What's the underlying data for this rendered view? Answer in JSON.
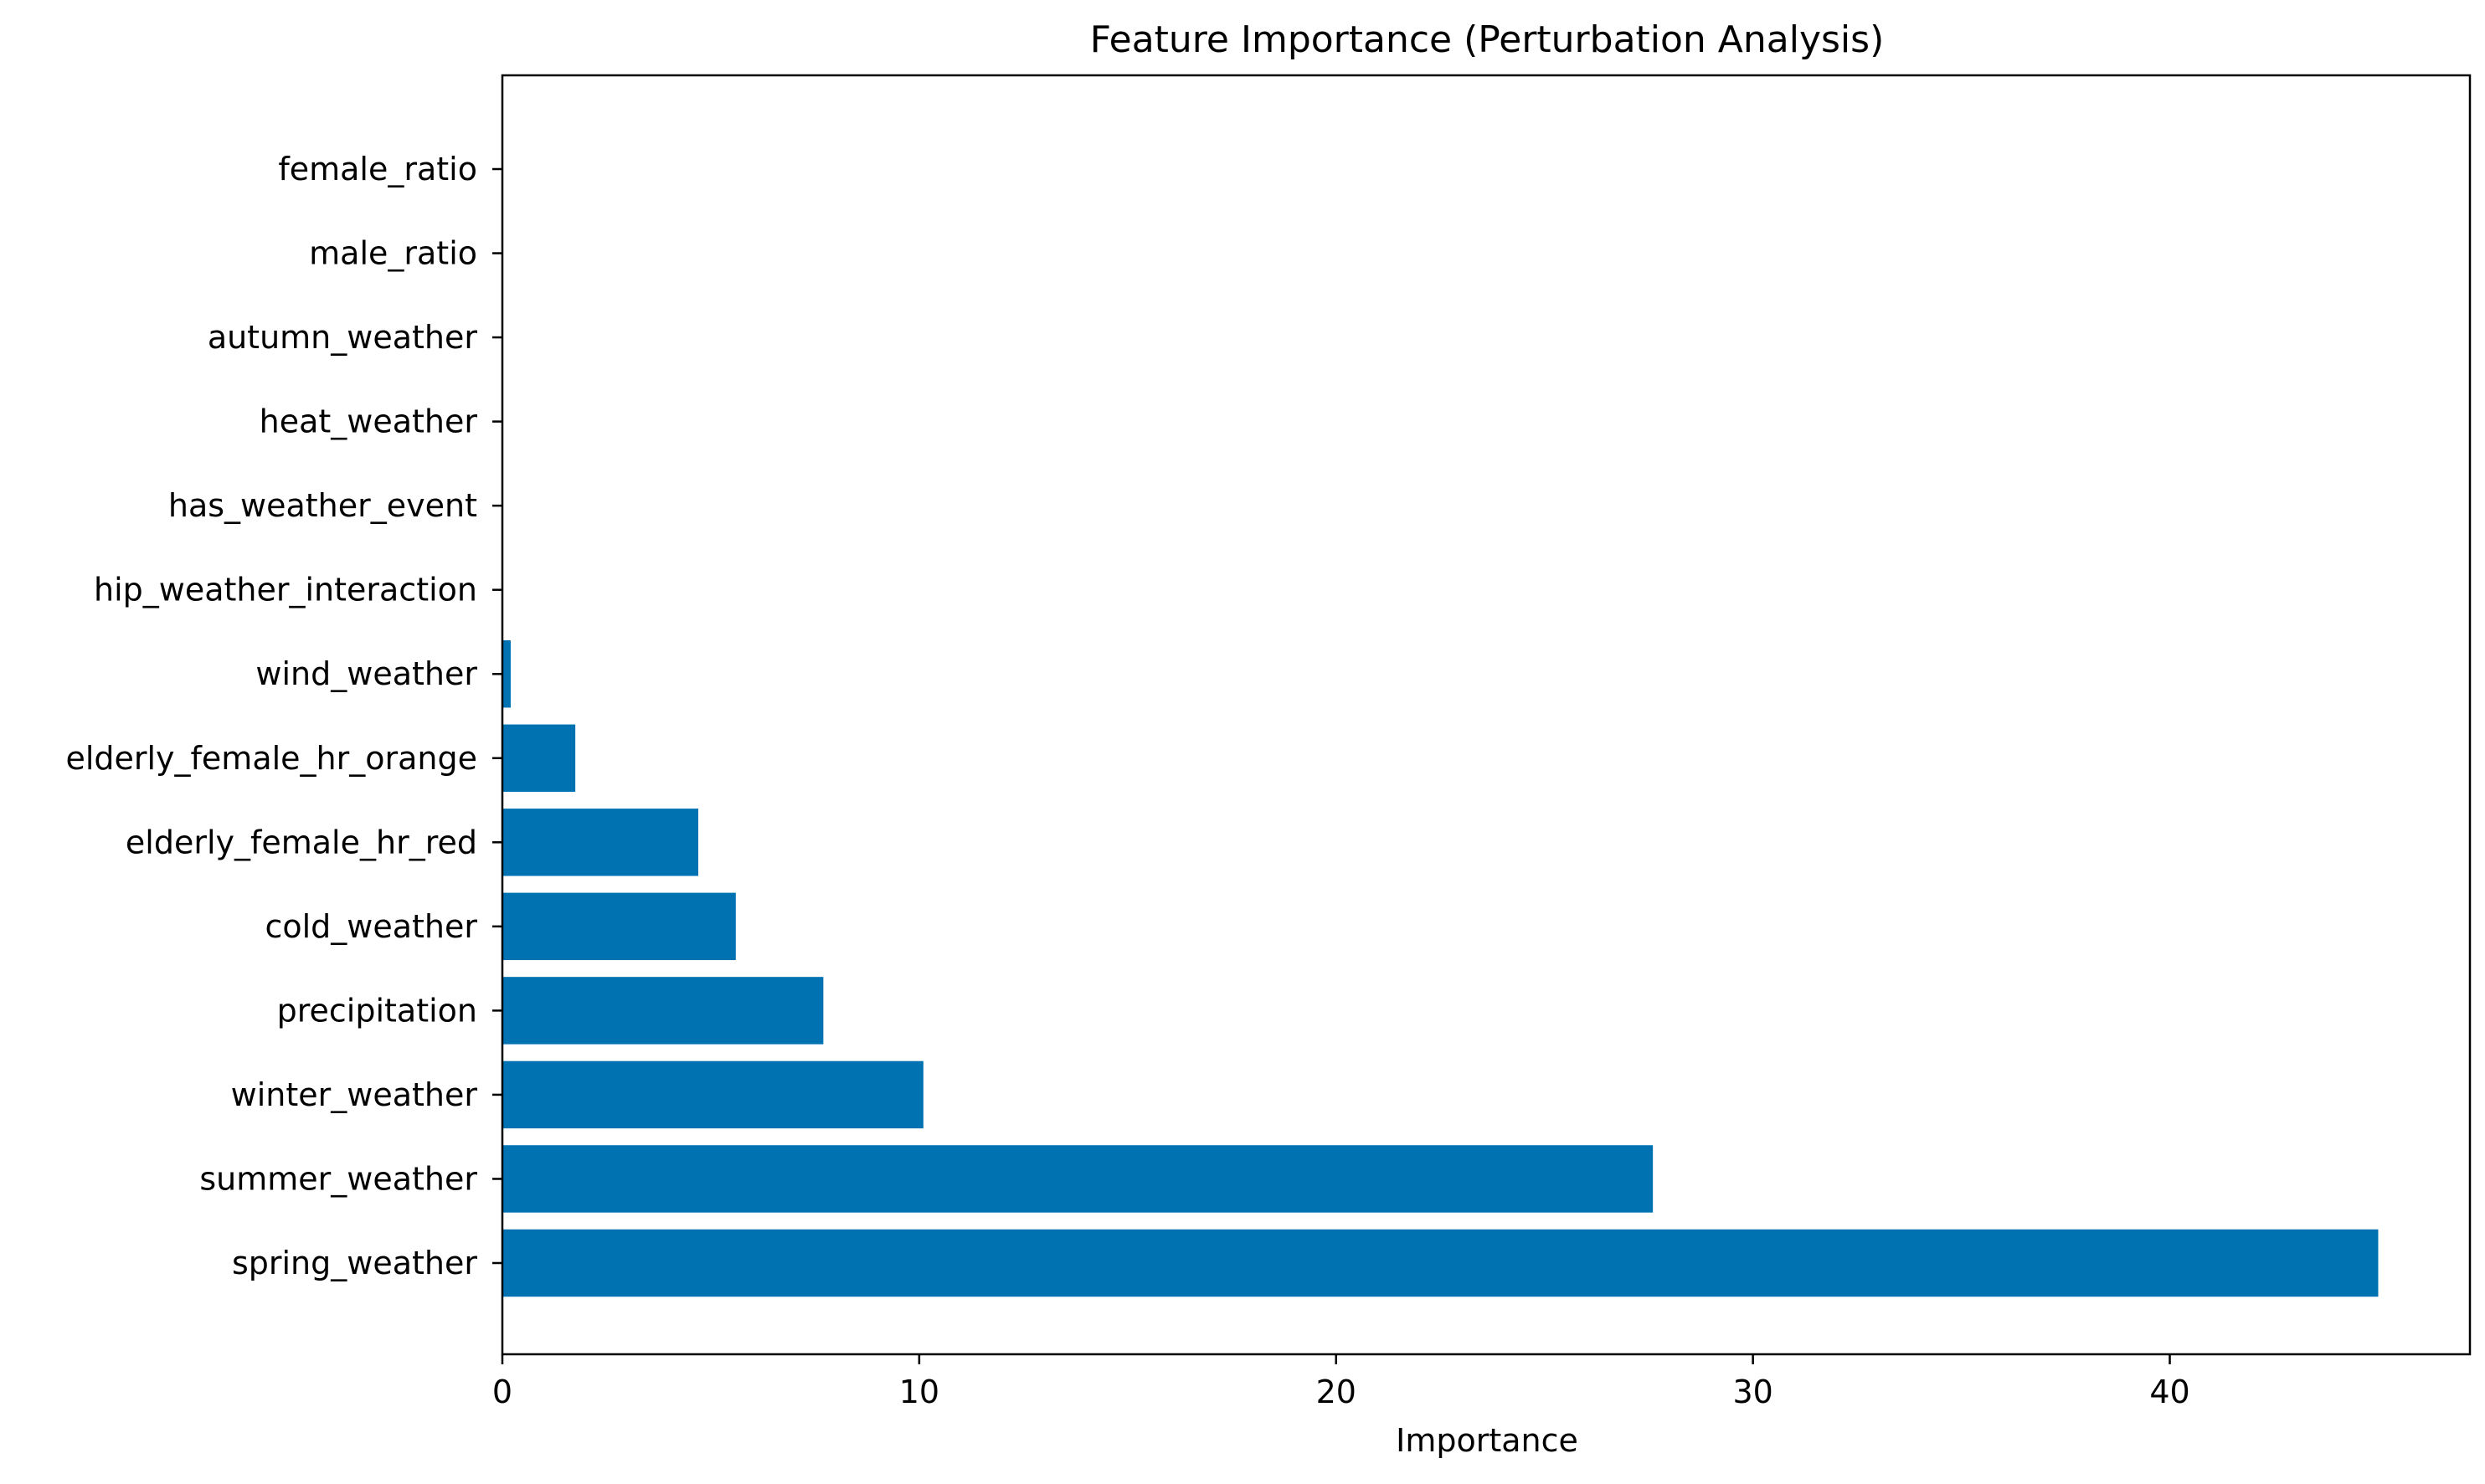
{
  "chart_data": {
    "type": "bar",
    "orientation": "horizontal",
    "title": "Feature Importance (Perturbation Analysis)",
    "xlabel": "Importance",
    "ylabel": "",
    "xlim": [
      0,
      47.2
    ],
    "xticks": [
      0,
      10,
      20,
      30,
      40
    ],
    "grid": false,
    "bar_color": "#0072b2",
    "categories": [
      "spring_weather",
      "summer_weather",
      "winter_weather",
      "precipitation",
      "cold_weather",
      "elderly_female_hr_red",
      "elderly_female_hr_orange",
      "wind_weather",
      "hip_weather_interaction",
      "has_weather_event",
      "heat_weather",
      "autumn_weather",
      "male_ratio",
      "female_ratio"
    ],
    "values": [
      45.0,
      27.6,
      10.1,
      7.7,
      5.6,
      4.7,
      1.75,
      0.2,
      0,
      0,
      0,
      0,
      0,
      0
    ]
  }
}
